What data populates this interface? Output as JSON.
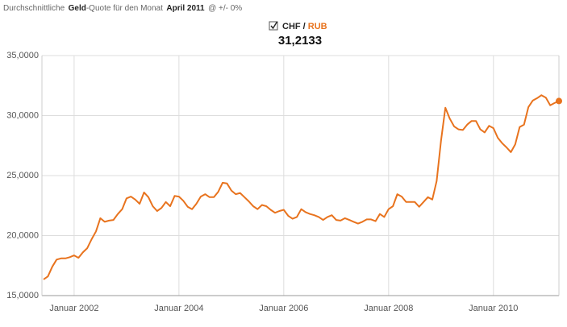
{
  "header": {
    "prefix": "Durchschnittliche",
    "bold1": "Geld",
    "middle": "-Quote für den Monat",
    "bold2": "April 2011",
    "suffix": "@ +/- 0%",
    "pair_base": "CHF",
    "pair_sep": "/",
    "pair_quote": "RUB",
    "current_value": "31,2133"
  },
  "chart_data": {
    "type": "line",
    "x": [
      "2001-06",
      "2001-07",
      "2001-08",
      "2001-09",
      "2001-10",
      "2001-11",
      "2001-12",
      "2002-01",
      "2002-02",
      "2002-03",
      "2002-04",
      "2002-05",
      "2002-06",
      "2002-07",
      "2002-08",
      "2002-09",
      "2002-10",
      "2002-11",
      "2002-12",
      "2003-01",
      "2003-02",
      "2003-03",
      "2003-04",
      "2003-05",
      "2003-06",
      "2003-07",
      "2003-08",
      "2003-09",
      "2003-10",
      "2003-11",
      "2003-12",
      "2004-01",
      "2004-02",
      "2004-03",
      "2004-04",
      "2004-05",
      "2004-06",
      "2004-07",
      "2004-08",
      "2004-09",
      "2004-10",
      "2004-11",
      "2004-12",
      "2005-01",
      "2005-02",
      "2005-03",
      "2005-04",
      "2005-05",
      "2005-06",
      "2005-07",
      "2005-08",
      "2005-09",
      "2005-10",
      "2005-11",
      "2005-12",
      "2006-01",
      "2006-02",
      "2006-03",
      "2006-04",
      "2006-05",
      "2006-06",
      "2006-07",
      "2006-08",
      "2006-09",
      "2006-10",
      "2006-11",
      "2006-12",
      "2007-01",
      "2007-02",
      "2007-03",
      "2007-04",
      "2007-05",
      "2007-06",
      "2007-07",
      "2007-08",
      "2007-09",
      "2007-10",
      "2007-11",
      "2007-12",
      "2008-01",
      "2008-02",
      "2008-03",
      "2008-04",
      "2008-05",
      "2008-06",
      "2008-07",
      "2008-08",
      "2008-09",
      "2008-10",
      "2008-11",
      "2008-12",
      "2009-01",
      "2009-02",
      "2009-03",
      "2009-04",
      "2009-05",
      "2009-06",
      "2009-07",
      "2009-08",
      "2009-09",
      "2009-10",
      "2009-11",
      "2009-12",
      "2010-01",
      "2010-02",
      "2010-03",
      "2010-04",
      "2010-05",
      "2010-06",
      "2010-07",
      "2010-08",
      "2010-09",
      "2010-10",
      "2010-11",
      "2010-12",
      "2011-01",
      "2011-02",
      "2011-03",
      "2011-04"
    ],
    "series": [
      {
        "name": "CHF / RUB",
        "color": "#e8731e",
        "values": [
          16.35,
          16.6,
          17.4,
          18.0,
          18.1,
          18.1,
          18.2,
          18.35,
          18.15,
          18.6,
          18.95,
          19.7,
          20.35,
          21.45,
          21.15,
          21.25,
          21.3,
          21.8,
          22.2,
          23.1,
          23.25,
          23.0,
          22.65,
          23.6,
          23.2,
          22.45,
          22.05,
          22.3,
          22.8,
          22.45,
          23.3,
          23.25,
          22.9,
          22.4,
          22.2,
          22.65,
          23.25,
          23.45,
          23.2,
          23.2,
          23.65,
          24.4,
          24.35,
          23.75,
          23.45,
          23.55,
          23.2,
          22.85,
          22.45,
          22.2,
          22.55,
          22.45,
          22.15,
          21.9,
          22.05,
          22.15,
          21.65,
          21.4,
          21.55,
          22.2,
          21.95,
          21.8,
          21.7,
          21.55,
          21.3,
          21.55,
          21.7,
          21.3,
          21.25,
          21.45,
          21.3,
          21.15,
          21.0,
          21.15,
          21.35,
          21.35,
          21.2,
          21.8,
          21.55,
          22.2,
          22.45,
          23.45,
          23.25,
          22.8,
          22.8,
          22.8,
          22.4,
          22.8,
          23.2,
          23.0,
          24.55,
          27.9,
          30.65,
          29.75,
          29.1,
          28.85,
          28.8,
          29.25,
          29.55,
          29.55,
          28.85,
          28.6,
          29.15,
          28.95,
          28.15,
          27.7,
          27.35,
          26.95,
          27.6,
          29.05,
          29.25,
          30.7,
          31.25,
          31.45,
          31.7,
          31.5,
          30.85,
          31.05,
          31.2133
        ]
      }
    ],
    "ylim": [
      15,
      35
    ],
    "yticks": [
      {
        "value": 15,
        "label": "15,0000"
      },
      {
        "value": 20,
        "label": "20,0000"
      },
      {
        "value": 25,
        "label": "25,0000"
      },
      {
        "value": 30,
        "label": "30,0000"
      },
      {
        "value": 35,
        "label": "35,0000"
      }
    ],
    "xticks": [
      {
        "value": "2002-01",
        "label": "Januar 2002"
      },
      {
        "value": "2004-01",
        "label": "Januar 2004"
      },
      {
        "value": "2006-01",
        "label": "Januar 2006"
      },
      {
        "value": "2008-01",
        "label": "Januar 2008"
      },
      {
        "value": "2010-01",
        "label": "Januar 2010"
      }
    ],
    "grid": true
  }
}
